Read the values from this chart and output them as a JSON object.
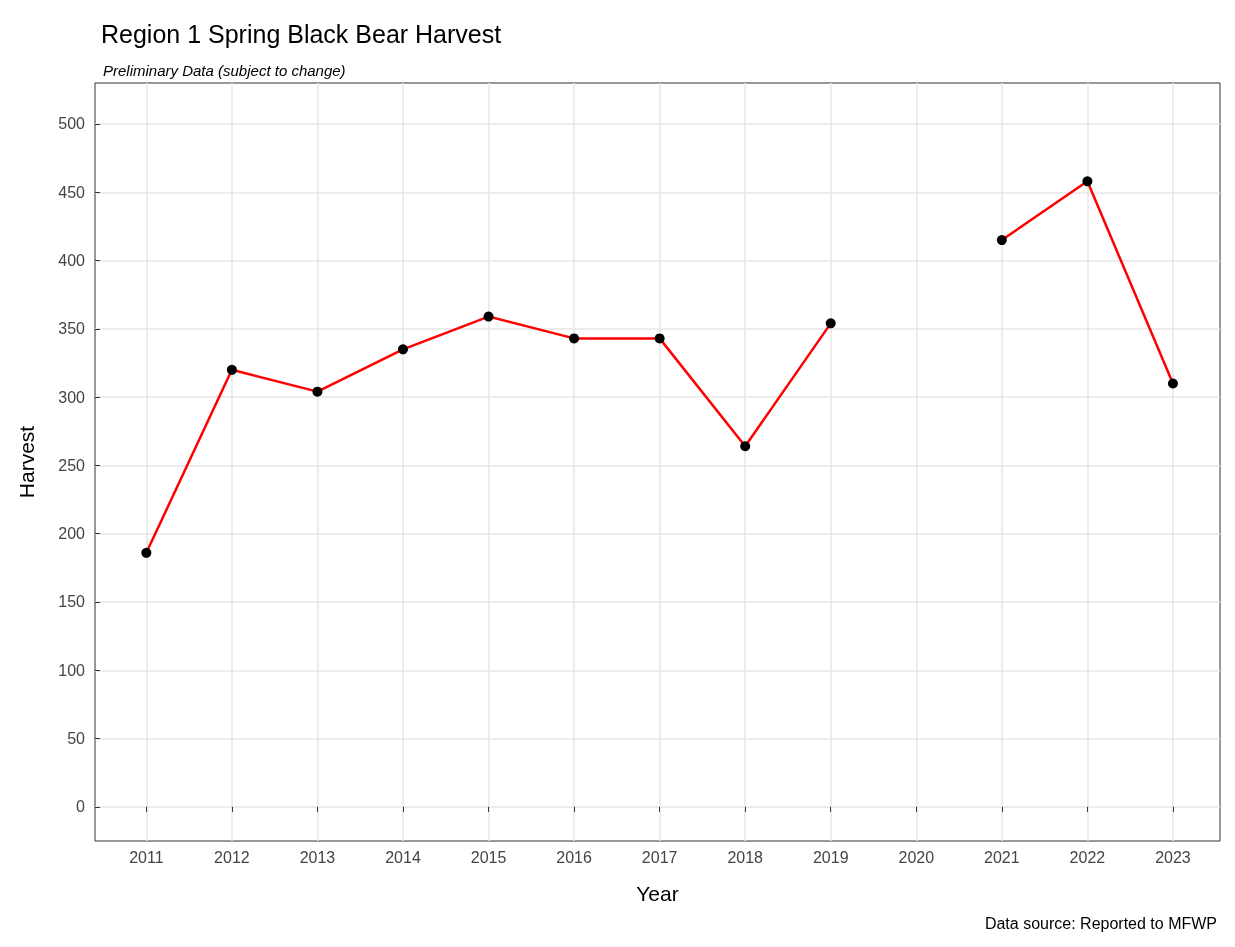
{
  "chart_data": {
    "type": "line",
    "title": "Region 1 Spring Black Bear Harvest",
    "subtitle": "Preliminary Data (subject to change)",
    "xlabel": "Year",
    "ylabel": "Harvest",
    "annotations": [
      "Data source: Reported to MFWP"
    ],
    "x": [
      2011,
      2012,
      2013,
      2014,
      2015,
      2016,
      2017,
      2018,
      2019,
      2020,
      2021,
      2022,
      2023
    ],
    "series": [
      {
        "color": "#ff0000",
        "values": [
          186,
          320,
          304,
          335,
          359,
          343,
          343,
          264,
          354,
          null,
          415,
          458,
          310
        ]
      }
    ],
    "xlim": [
      2010.4,
      2023.55
    ],
    "xticks": [
      2011,
      2012,
      2013,
      2014,
      2015,
      2016,
      2017,
      2018,
      2019,
      2020,
      2021,
      2022,
      2023
    ],
    "ylim": [
      -25,
      530
    ],
    "yticks": [
      0,
      50,
      100,
      150,
      200,
      250,
      300,
      350,
      400,
      450,
      500
    ],
    "grid": true,
    "marker": "circle",
    "line_style": "solid"
  }
}
